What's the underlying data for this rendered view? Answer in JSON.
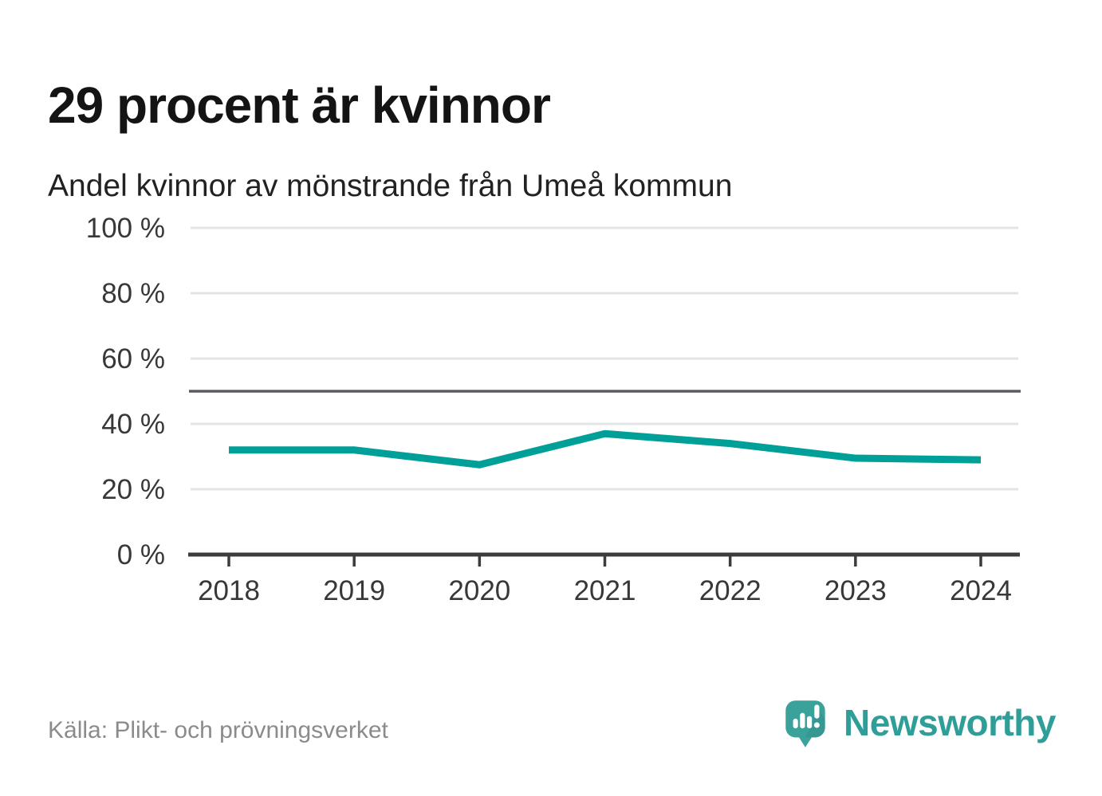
{
  "header": {
    "title": "29 procent är kvinnor",
    "subtitle": "Andel kvinnor av mönstrande från Umeå kommun"
  },
  "footer": {
    "source": "Källa: Plikt- och prövningsverket",
    "brand": "Newsworthy"
  },
  "colors": {
    "line": "#00a099",
    "grid": "#e4e4e4",
    "reference_line": "#5b5b63",
    "axis": "#3c3c3c",
    "tick_text": "#383838",
    "muted": "#8b8b8b",
    "brand_teal": "#3aa29b"
  },
  "chart_data": {
    "type": "line",
    "title": "29 procent är kvinnor",
    "subtitle": "Andel kvinnor av mönstrande från Umeå kommun",
    "x": [
      "2018",
      "2019",
      "2020",
      "2021",
      "2022",
      "2023",
      "2024"
    ],
    "series": [
      {
        "name": "Andel kvinnor av mönstrande",
        "values": [
          32,
          32,
          27.5,
          37,
          34,
          29.5,
          29
        ]
      }
    ],
    "xlabel": "",
    "ylabel": "",
    "ylim": [
      0,
      100
    ],
    "yticks": [
      0,
      20,
      40,
      60,
      80,
      100
    ],
    "ytick_suffix": " %",
    "reference_line": 50,
    "grid": "horizontal",
    "legend": "none",
    "source": "Källa: Plikt- och prövningsverket"
  }
}
